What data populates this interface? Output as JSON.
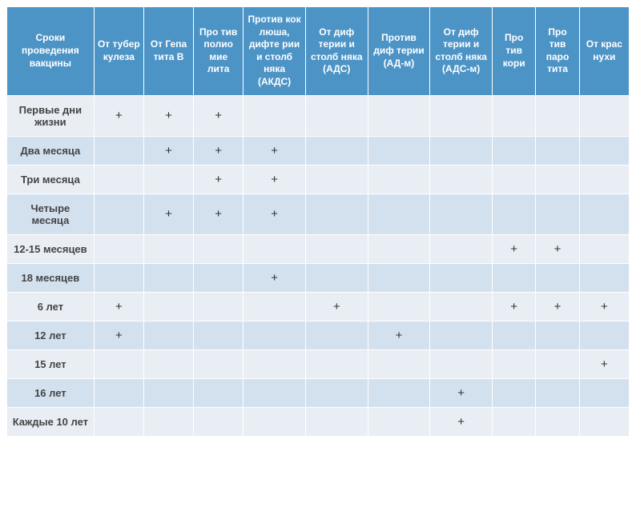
{
  "table": {
    "type": "table",
    "header_bg": "#4d94c6",
    "header_fg": "#ffffff",
    "row_even_bg": "#e8eef4",
    "row_odd_bg": "#d3e1ef",
    "border_color": "#ffffff",
    "header_fontsize": 12,
    "cell_fontsize": 13,
    "plus_symbol": "+",
    "col_widths_pct": [
      14,
      8,
      8,
      8,
      10,
      10,
      10,
      10,
      7,
      7,
      8
    ],
    "columns": [
      "Сроки проведения вакцины",
      "От тубер кулеза",
      "От Гепа тита В",
      "Про тив полио мие лита",
      "Против кок люша, дифте рии и столб няка (АКДС)",
      "От диф терии и столб няка (АДС)",
      "Против диф терии (АД-м)",
      "От диф терии и столб няка (АДС-м)",
      "Про тив кори",
      "Про тив паро тита",
      "От крас нухи"
    ],
    "rows": [
      {
        "label": "Первые дни жизни",
        "cells": [
          "+",
          "+",
          "+",
          "",
          "",
          "",
          "",
          "",
          "",
          ""
        ]
      },
      {
        "label": "Два месяца",
        "cells": [
          "",
          "+",
          "+",
          "+",
          "",
          "",
          "",
          "",
          "",
          ""
        ]
      },
      {
        "label": "Три месяца",
        "cells": [
          "",
          "",
          "+",
          "+",
          "",
          "",
          "",
          "",
          "",
          ""
        ]
      },
      {
        "label": "Четыре месяца",
        "cells": [
          "",
          "+",
          "+",
          "+",
          "",
          "",
          "",
          "",
          "",
          ""
        ]
      },
      {
        "label": "12-15 месяцев",
        "cells": [
          "",
          "",
          "",
          "",
          "",
          "",
          "",
          "+",
          "+",
          ""
        ]
      },
      {
        "label": "18 месяцев",
        "cells": [
          "",
          "",
          "",
          "+",
          "",
          "",
          "",
          "",
          "",
          ""
        ]
      },
      {
        "label": "6 лет",
        "cells": [
          "+",
          "",
          "",
          "",
          "+",
          "",
          "",
          "+",
          "+",
          "+"
        ]
      },
      {
        "label": "12 лет",
        "cells": [
          "+",
          "",
          "",
          "",
          "",
          "+",
          "",
          "",
          "",
          ""
        ]
      },
      {
        "label": "15 лет",
        "cells": [
          "",
          "",
          "",
          "",
          "",
          "",
          "",
          "",
          "",
          "+"
        ]
      },
      {
        "label": "16 лет",
        "cells": [
          "",
          "",
          "",
          "",
          "",
          "",
          "+",
          "",
          "",
          ""
        ]
      },
      {
        "label": "Каждые 10 лет",
        "cells": [
          "",
          "",
          "",
          "",
          "",
          "",
          "+",
          "",
          "",
          ""
        ]
      }
    ]
  }
}
